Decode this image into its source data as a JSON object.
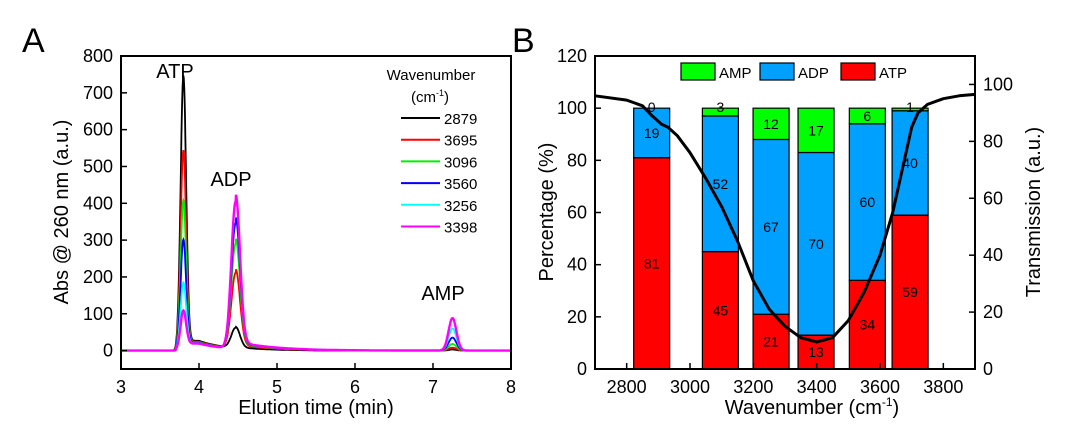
{
  "chart_data": [
    {
      "panel_label": "A",
      "type": "line",
      "xlabel": "Elution time (min)",
      "ylabel": "Abs @ 260 nm (a.u.)",
      "xlim": [
        3,
        8
      ],
      "ylim": [
        -50,
        800
      ],
      "xticks": [
        3,
        4,
        5,
        6,
        7,
        8
      ],
      "yticks": [
        0,
        100,
        200,
        300,
        400,
        500,
        600,
        700,
        800
      ],
      "legend_title": "Wavenumber",
      "legend_unit": "(cm-1)",
      "legend_placement": "top-right",
      "annotations": [
        {
          "text": "ATP",
          "x": 3.8
        },
        {
          "text": "ADP",
          "x": 4.47
        },
        {
          "text": "AMP",
          "x": 7.25
        }
      ],
      "peak_times": {
        "ATP": 3.8,
        "ADP": 4.47,
        "AMP": 7.25
      },
      "series": [
        {
          "name": "2879",
          "color": "#000000",
          "peaks": {
            "ATP": 720,
            "ADP": 55,
            "AMP": 3
          }
        },
        {
          "name": "3695",
          "color": "#ff0000",
          "peaks": {
            "ATP": 520,
            "ADP": 205,
            "AMP": 8
          }
        },
        {
          "name": "3096",
          "color": "#00ee00",
          "peaks": {
            "ATP": 385,
            "ADP": 285,
            "AMP": 18
          }
        },
        {
          "name": "3560",
          "color": "#0000ff",
          "peaks": {
            "ATP": 280,
            "ADP": 340,
            "AMP": 35
          }
        },
        {
          "name": "3256",
          "color": "#00ffff",
          "peaks": {
            "ATP": 165,
            "ADP": 395,
            "AMP": 60
          }
        },
        {
          "name": "3398",
          "color": "#ff00ff",
          "peaks": {
            "ATP": 90,
            "ADP": 400,
            "AMP": 88
          }
        }
      ]
    },
    {
      "panel_label": "B",
      "type": "bar",
      "stacked": true,
      "xlabel": "Wavenumber (cm-1)",
      "ylabel": "Percentage (%)",
      "y2label": "Transmission (a.u.)",
      "xlim": [
        2700,
        3900
      ],
      "ylim": [
        0,
        120
      ],
      "y2lim": [
        0,
        110
      ],
      "xticks": [
        2800,
        3000,
        3200,
        3400,
        3600,
        3800
      ],
      "yticks": [
        0,
        20,
        40,
        60,
        80,
        100,
        120
      ],
      "y2ticks": [
        0,
        20,
        40,
        60,
        80,
        100
      ],
      "legend_placement": "top",
      "legend": [
        {
          "name": "AMP",
          "color": "#00ff00"
        },
        {
          "name": "ADP",
          "color": "#00a0ff"
        },
        {
          "name": "ATP",
          "color": "#ff0000"
        }
      ],
      "categories": [
        2879,
        3096,
        3256,
        3398,
        3560,
        3695
      ],
      "series": [
        {
          "name": "ATP",
          "color": "#ff0000",
          "values": [
            81,
            45,
            21,
            13,
            34,
            59
          ]
        },
        {
          "name": "ADP",
          "color": "#00a0ff",
          "values": [
            19,
            52,
            67,
            70,
            60,
            40
          ]
        },
        {
          "name": "AMP",
          "color": "#00ff00",
          "values": [
            0,
            3,
            12,
            17,
            6,
            1
          ]
        }
      ],
      "transmission": {
        "x": [
          2700,
          2800,
          2850,
          2880,
          2910,
          2930,
          2960,
          3000,
          3050,
          3100,
          3150,
          3200,
          3250,
          3300,
          3350,
          3400,
          3450,
          3500,
          3550,
          3600,
          3640,
          3670,
          3700,
          3720,
          3750,
          3800,
          3850,
          3900
        ],
        "y": [
          96,
          94.5,
          92.5,
          89,
          86,
          85,
          82,
          76,
          67,
          57,
          45,
          31,
          21,
          15,
          11,
          9.5,
          11,
          17,
          27,
          40,
          55,
          70,
          85,
          90,
          93,
          95,
          96,
          96.5
        ]
      }
    }
  ]
}
